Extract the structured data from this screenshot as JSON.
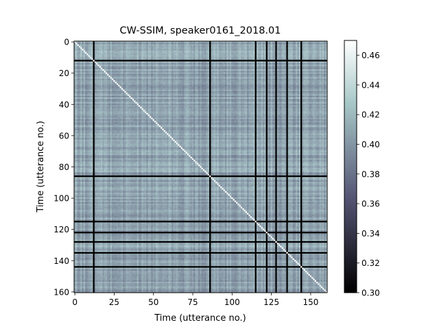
{
  "chart_data": {
    "type": "heatmap",
    "title": "CW-SSIM, speaker0161_2018.01",
    "xlabel": "Time (utterance no.)",
    "ylabel": "Time (utterance no.)",
    "n": 161,
    "xlim": [
      0,
      161
    ],
    "ylim": [
      161,
      0
    ],
    "x_ticks": [
      0,
      25,
      50,
      75,
      100,
      125,
      150
    ],
    "y_ticks": [
      0,
      20,
      40,
      60,
      80,
      100,
      120,
      140,
      160
    ],
    "colorbar": {
      "colormap": "bone",
      "range": [
        0.3,
        0.47
      ],
      "ticks": [
        "0.30",
        "0.32",
        "0.34",
        "0.36",
        "0.38",
        "0.40",
        "0.42",
        "0.44",
        "0.46"
      ]
    },
    "diagonal_value": 1.0,
    "typical_value": 0.41,
    "low_similarity_utterances": [
      12,
      86,
      115,
      122,
      128,
      135,
      144
    ],
    "low_similarity_value": 0.3,
    "grid": false
  }
}
